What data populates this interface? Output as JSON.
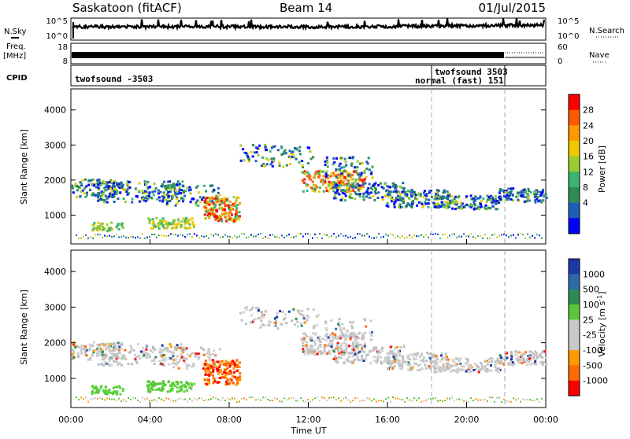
{
  "header": {
    "station": "Saskatoon (fitACF)",
    "beam": "Beam 14",
    "date": "01/Jul/2015"
  },
  "strip": {
    "nsky_label": "N.Sky",
    "nsearch_label": "N.Search",
    "noise_left_ticks": [
      "10^5",
      "10^0"
    ],
    "noise_right_ticks": [
      "10^5",
      "10^0"
    ],
    "freq_label_1": "Freq.",
    "freq_label_2": "[MHz]",
    "freq_ticks": [
      "18",
      "8"
    ],
    "nave_label": "Nave",
    "nave_ticks": [
      "60",
      "0"
    ],
    "cpid_label": "CPID",
    "cpid_entries": [
      {
        "text": "twofsound -3503",
        "start_hour": 0
      },
      {
        "text": "twofsound 3503",
        "start_hour": 18.2
      },
      {
        "text": "normal (fast) 151",
        "start_hour": 21.8
      }
    ]
  },
  "chart_data": [
    {
      "type": "heatmap",
      "name": "power",
      "ylabel": "Slant Range [km]",
      "ylim": [
        180,
        4600
      ],
      "yticks": [
        1000,
        2000,
        3000,
        4000
      ],
      "xlim": [
        0,
        24
      ],
      "colorbar": {
        "label": "Power [dB]",
        "ticks": [
          "28",
          "24",
          "20",
          "16",
          "12",
          "8",
          "4"
        ],
        "colors": [
          "#ff0000",
          "#ff5a00",
          "#ff9900",
          "#f0c800",
          "#9acd32",
          "#3cb371",
          "#2e8b57",
          "#1c5eb8",
          "#0000ff"
        ]
      },
      "grid": false
    },
    {
      "type": "heatmap",
      "name": "velocity",
      "ylabel": "Slant Range [km]",
      "ylim": [
        180,
        4600
      ],
      "yticks": [
        1000,
        2000,
        3000,
        4000
      ],
      "xlim": [
        0,
        24
      ],
      "xticks": [
        "00:00",
        "04:00",
        "08:00",
        "12:00",
        "16:00",
        "20:00",
        "00:00"
      ],
      "xlabel": "Time UT",
      "colorbar": {
        "label": "Velocity [m s",
        "label_sup": "-1",
        "label_end": "]",
        "ticks": [
          "1000",
          "500",
          "100",
          "25",
          "-25",
          "-100",
          "-500",
          "-1000"
        ],
        "colors": [
          "#1a3aa6",
          "#2f6aa8",
          "#2e8b57",
          "#5cc43c",
          "#c8c8c8",
          "#c8c8c8",
          "#ff9a00",
          "#ff6a00",
          "#ff0000"
        ]
      },
      "grid": false
    }
  ]
}
